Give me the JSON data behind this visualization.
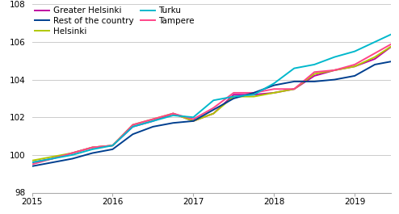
{
  "title": "",
  "series_order": [
    "Greater Helsinki",
    "Helsinki",
    "Tampere",
    "Rest of the country",
    "Turku"
  ],
  "series": {
    "Greater Helsinki": {
      "color": "#c000a0",
      "linewidth": 1.4,
      "values": [
        99.6,
        99.8,
        100.1,
        100.4,
        100.5,
        101.5,
        101.8,
        102.2,
        101.8,
        102.2,
        103.2,
        103.2,
        103.3,
        103.5,
        104.2,
        104.5,
        104.7,
        105.1,
        105.9
      ]
    },
    "Helsinki": {
      "color": "#b0c800",
      "linewidth": 1.4,
      "values": [
        99.7,
        99.9,
        100.1,
        100.4,
        100.5,
        101.6,
        101.9,
        102.2,
        101.8,
        102.2,
        103.1,
        103.1,
        103.3,
        103.5,
        104.3,
        104.5,
        104.7,
        105.2,
        105.9
      ]
    },
    "Tampere": {
      "color": "#ff4488",
      "linewidth": 1.4,
      "values": [
        99.5,
        99.8,
        100.1,
        100.4,
        100.5,
        101.6,
        101.9,
        102.2,
        101.9,
        102.5,
        103.3,
        103.3,
        103.5,
        103.5,
        104.4,
        104.5,
        104.8,
        105.4,
        106.0
      ]
    },
    "Rest of the country": {
      "color": "#003f8f",
      "linewidth": 1.4,
      "values": [
        99.4,
        99.6,
        99.8,
        100.1,
        100.3,
        101.1,
        101.5,
        101.7,
        101.8,
        102.4,
        103.0,
        103.3,
        103.7,
        103.9,
        103.9,
        104.0,
        104.2,
        104.8,
        105.0
      ]
    },
    "Turku": {
      "color": "#00b8cc",
      "linewidth": 1.4,
      "values": [
        99.6,
        99.8,
        100.0,
        100.3,
        100.5,
        101.5,
        101.8,
        102.1,
        102.0,
        102.9,
        103.1,
        103.2,
        103.8,
        104.6,
        104.8,
        105.2,
        105.5,
        106.0,
        106.5
      ]
    }
  },
  "x_start": 2015.0,
  "x_step": 0.25,
  "n_points": 19,
  "xlim": [
    2015.0,
    2019.45
  ],
  "ylim": [
    98,
    108
  ],
  "yticks": [
    98,
    100,
    102,
    104,
    106,
    108
  ],
  "xticks": [
    2015,
    2016,
    2017,
    2018,
    2019
  ],
  "grid_color": "#cccccc",
  "background_color": "#ffffff",
  "legend_col1": [
    "Greater Helsinki",
    "Helsinki",
    "Tampere"
  ],
  "legend_col2": [
    "Rest of the country",
    "Turku"
  ],
  "fontsize": 7.5
}
